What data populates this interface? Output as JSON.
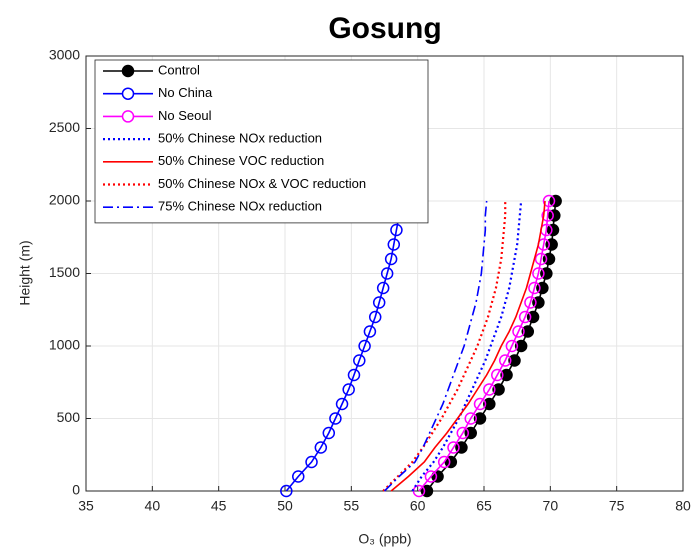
{
  "chart_data": {
    "type": "line",
    "title": "Gosung",
    "xlabel": "O₃ (ppb)",
    "ylabel": "Height (m)",
    "y": [
      0,
      100,
      200,
      300,
      400,
      500,
      600,
      700,
      800,
      900,
      1000,
      1100,
      1200,
      1300,
      1400,
      1500,
      1600,
      1700,
      1800,
      1900,
      2000
    ],
    "xlim": [
      35,
      80
    ],
    "xticks": [
      35,
      40,
      45,
      50,
      55,
      60,
      65,
      70,
      75,
      80
    ],
    "ylim": [
      0,
      3000
    ],
    "yticks": [
      0,
      500,
      1000,
      1500,
      2000,
      2500,
      3000
    ],
    "grid": true,
    "legend": "upper left",
    "series": [
      {
        "name": "Control",
        "color": "#000000",
        "dash": "solid",
        "marker": "filled",
        "values": [
          60.7,
          61.5,
          62.5,
          63.3,
          64.0,
          64.7,
          65.4,
          66.1,
          66.7,
          67.3,
          67.8,
          68.3,
          68.7,
          69.1,
          69.4,
          69.7,
          69.9,
          70.1,
          70.2,
          70.3,
          70.4
        ]
      },
      {
        "name": "No China",
        "color": "#0000ff",
        "dash": "solid",
        "marker": "open",
        "values": [
          50.1,
          51.0,
          52.0,
          52.7,
          53.3,
          53.8,
          54.3,
          54.8,
          55.2,
          55.6,
          56.0,
          56.4,
          56.8,
          57.1,
          57.4,
          57.7,
          58.0,
          58.2,
          58.4,
          58.6,
          58.9
        ]
      },
      {
        "name": "No Seoul",
        "color": "#ff00ff",
        "dash": "solid",
        "marker": "open",
        "values": [
          60.1,
          61.0,
          62.0,
          62.7,
          63.4,
          64.0,
          64.7,
          65.4,
          66.0,
          66.6,
          67.1,
          67.6,
          68.1,
          68.5,
          68.8,
          69.1,
          69.3,
          69.5,
          69.7,
          69.8,
          69.9
        ]
      },
      {
        "name": "50% Chinese NOx reduction",
        "color": "#0000ff",
        "dash": "dotted",
        "marker": "none",
        "values": [
          59.6,
          60.3,
          61.2,
          61.9,
          62.5,
          63.1,
          63.6,
          64.1,
          64.6,
          65.1,
          65.5,
          65.9,
          66.3,
          66.6,
          66.9,
          67.1,
          67.3,
          67.5,
          67.6,
          67.7,
          67.8
        ]
      },
      {
        "name": "50% Chinese VOC reduction",
        "color": "#ff0000",
        "dash": "solid",
        "marker": "none",
        "values": [
          58.0,
          59.3,
          60.5,
          61.3,
          62.2,
          63.0,
          63.8,
          64.5,
          65.2,
          65.8,
          66.3,
          66.9,
          67.4,
          67.8,
          68.2,
          68.5,
          68.8,
          69.1,
          69.3,
          69.5,
          69.6
        ]
      },
      {
        "name": "50% Chinese NOx & VOC reduction",
        "color": "#ff0000",
        "dash": "dotted",
        "marker": "none",
        "values": [
          57.4,
          58.5,
          59.6,
          60.4,
          61.1,
          61.8,
          62.4,
          63.0,
          63.5,
          64.0,
          64.5,
          64.9,
          65.3,
          65.6,
          65.9,
          66.1,
          66.3,
          66.4,
          66.5,
          66.6,
          66.6
        ]
      },
      {
        "name": "75% Chinese NOx reduction",
        "color": "#0000ff",
        "dash": "dashdot",
        "marker": "none",
        "values": [
          57.5,
          58.6,
          59.8,
          60.4,
          60.9,
          61.4,
          61.9,
          62.3,
          62.7,
          63.1,
          63.5,
          63.8,
          64.1,
          64.4,
          64.6,
          64.8,
          64.9,
          65.0,
          65.1,
          65.1,
          65.2
        ]
      }
    ]
  }
}
